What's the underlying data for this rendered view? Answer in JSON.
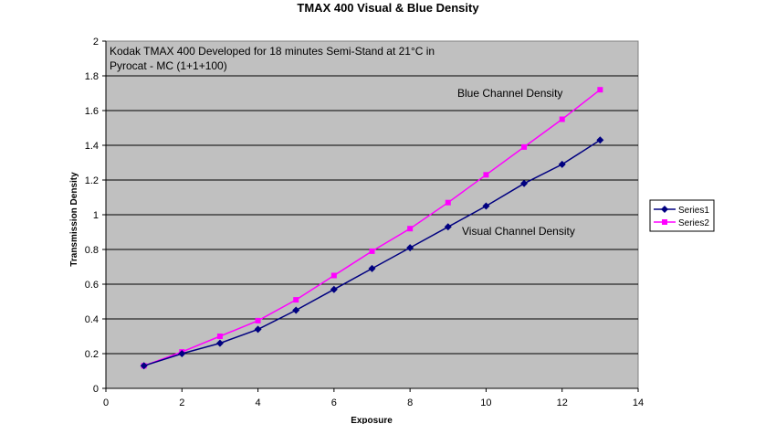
{
  "chart_data": {
    "type": "line",
    "title": "TMAX 400 Visual & Blue Density",
    "xlabel": "Exposure",
    "ylabel": "Transmission Density",
    "xlim": [
      0,
      14
    ],
    "ylim": [
      0,
      2
    ],
    "x_ticks": [
      "0",
      "2",
      "4",
      "6",
      "8",
      "10",
      "12",
      "14"
    ],
    "y_ticks": [
      "0",
      "0.2",
      "0.4",
      "0.6",
      "0.8",
      "1",
      "1.2",
      "1.4",
      "1.6",
      "1.8",
      "2"
    ],
    "grid": "horizontal",
    "plot_background": "#c0c0c0",
    "legend_position": "right",
    "annotations": {
      "note_line1": "Kodak TMAX 400 Developed for 18 minutes Semi-Stand at 21°C in",
      "note_line2": "Pyrocat - MC (1+1+100)",
      "blue_label": "Blue Channel Density",
      "visual_label": "Visual Channel Density"
    },
    "x": [
      1,
      2,
      3,
      4,
      5,
      6,
      7,
      8,
      9,
      10,
      11,
      12,
      13
    ],
    "series": [
      {
        "name": "Series1",
        "color": "#000080",
        "marker": "diamond",
        "values": [
          0.13,
          0.2,
          0.26,
          0.34,
          0.45,
          0.57,
          0.69,
          0.81,
          0.93,
          1.05,
          1.18,
          1.29,
          1.43
        ]
      },
      {
        "name": "Series2",
        "color": "#ff00ff",
        "marker": "square",
        "values": [
          0.13,
          0.21,
          0.3,
          0.39,
          0.51,
          0.65,
          0.79,
          0.92,
          1.07,
          1.23,
          1.39,
          1.55,
          1.72
        ]
      }
    ]
  }
}
